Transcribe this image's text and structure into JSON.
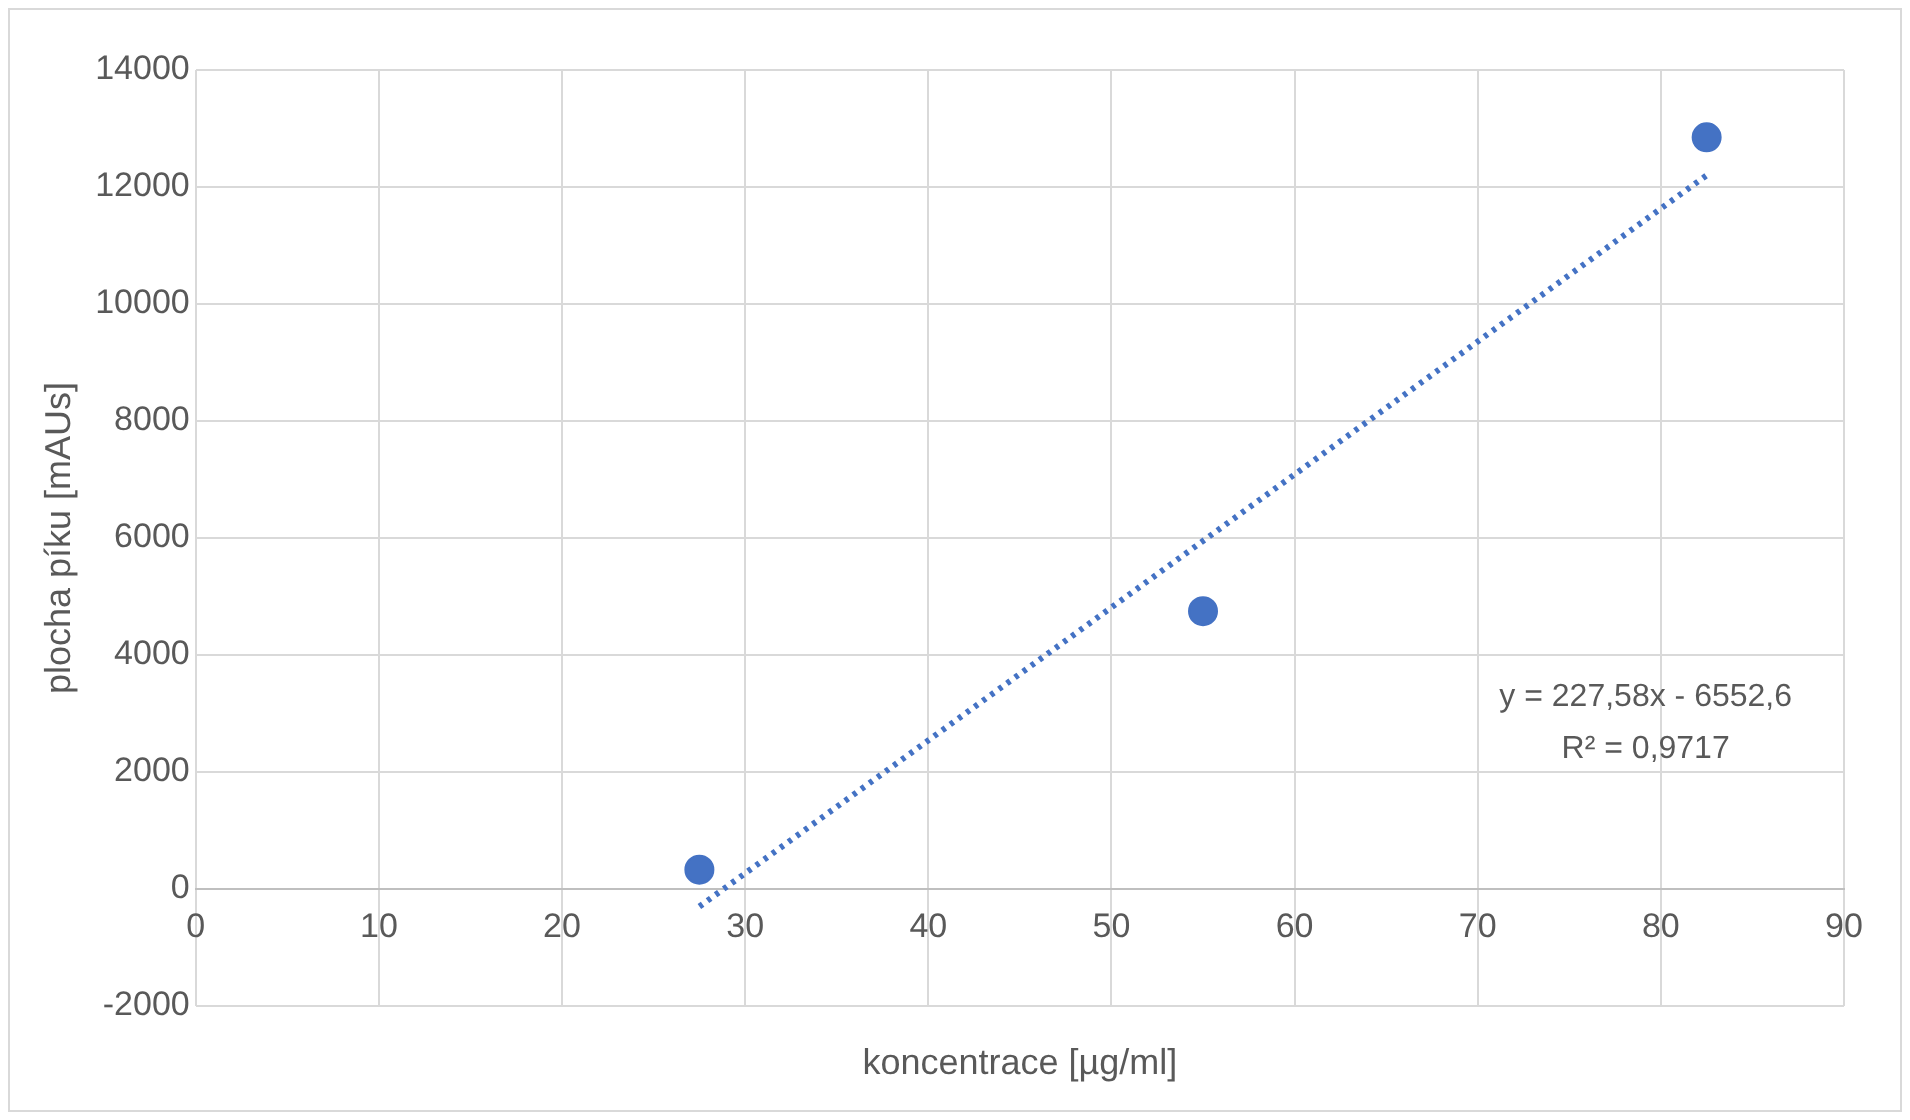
{
  "chart_data": {
    "type": "scatter",
    "xlabel": "koncentrace [µg/ml]",
    "ylabel": "plocha píku [mAUs]",
    "xlim": [
      0,
      90
    ],
    "xticks": [
      0,
      10,
      20,
      30,
      40,
      50,
      60,
      70,
      80,
      90
    ],
    "ylim": [
      -2000,
      14000
    ],
    "yticks": [
      -2000,
      0,
      2000,
      4000,
      6000,
      8000,
      10000,
      12000,
      14000
    ],
    "grid": true,
    "legend": false,
    "series": [
      {
        "color": "#4472c4",
        "marker": "circle",
        "x": [
          27.5,
          55,
          82.5
        ],
        "values": [
          330,
          4750,
          12850
        ]
      },
      {
        "type": "line",
        "color": "#4472c4",
        "marker": "none",
        "line_style": "dotted",
        "x": [
          27.5,
          82.5
        ],
        "values": [
          -300,
          12200
        ]
      }
    ],
    "annotations": [
      "y = 227,58x - 6552,6",
      "R² = 0,9717"
    ]
  }
}
